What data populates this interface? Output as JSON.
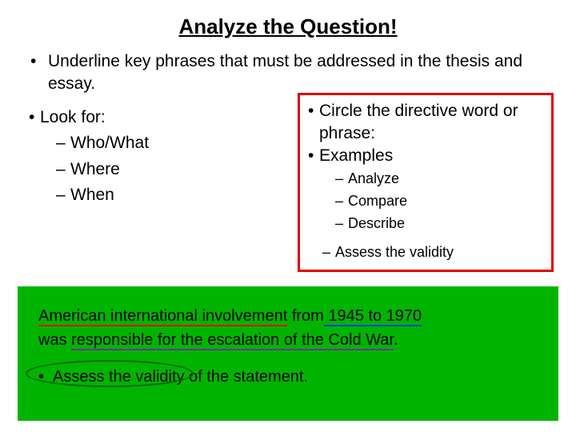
{
  "title": "Analyze the Question!",
  "main_bullet": "Underline key phrases that must be addressed in the thesis and essay.",
  "look_for": {
    "label": "Look for:",
    "items": [
      "Who/What",
      "Where",
      "When"
    ]
  },
  "directive": {
    "line1": "Circle the directive word or phrase:",
    "line2": "Examples",
    "items": [
      "Analyze",
      "Compare",
      "Describe"
    ],
    "extra": "Assess the validity"
  },
  "prompt": {
    "seg1": "American international involvement",
    "seg2": " from",
    "seg3": " 1945 to 1970",
    "seg4": "was ",
    "seg5": "responsible for the escalation of the Cold War",
    "seg6": ".",
    "stmt1": "Assess the validity",
    "stmt2": " of the statement."
  },
  "colors": {
    "red": "#e00000",
    "purple": "#7030a0",
    "blue": "#0044cc",
    "green_bg": "#00b400",
    "oval": "#006600"
  }
}
